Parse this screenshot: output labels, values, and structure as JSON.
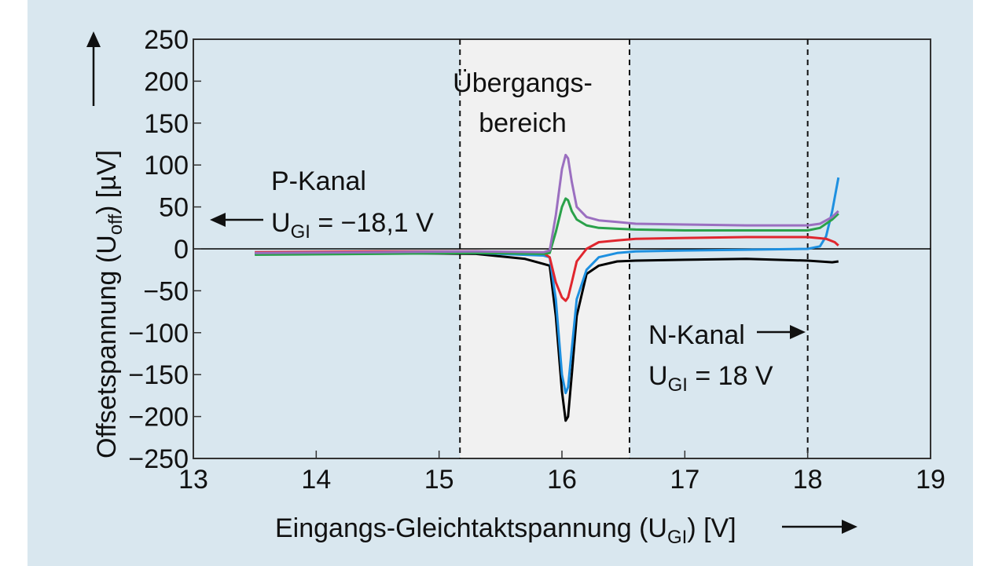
{
  "chart_data": {
    "type": "line",
    "xlabel": "Eingangs-Gleichtaktspannung (U",
    "xlabel_sub": "GI",
    "xlabel_tail": ") [V]",
    "ylabel": "Offsetspannung (U",
    "ylabel_sub": "off",
    "ylabel_tail": ") [µV]",
    "xlim": [
      13,
      19
    ],
    "ylim": [
      -250,
      250
    ],
    "xticks": [
      "13",
      "14",
      "15",
      "16",
      "17",
      "18",
      "19"
    ],
    "yticks": [
      "250",
      "200",
      "150",
      "100",
      "50",
      "0",
      "−50",
      "−100",
      "−150",
      "−200",
      "−250"
    ],
    "grid": false,
    "dashed_lines_x": [
      15.17,
      16.55,
      18.0
    ],
    "shaded_region_x": [
      15.17,
      16.55
    ],
    "annotations": {
      "region": [
        "Übergangs-",
        "bereich"
      ],
      "p_channel": "P-Kanal",
      "p_channel_eq": "U",
      "p_channel_eq_sub": "GI",
      "p_channel_eq_tail": " = −18,1 V",
      "n_channel": "N-Kanal",
      "n_channel_eq": "U",
      "n_channel_eq_sub": "GI",
      "n_channel_eq_tail": " = 18 V"
    },
    "series": [
      {
        "color": "#000000",
        "x": [
          13.5,
          14.5,
          15.3,
          15.7,
          15.85,
          15.9,
          15.95,
          16.0,
          16.03,
          16.05,
          16.08,
          16.12,
          16.2,
          16.3,
          16.45,
          16.6,
          17.0,
          17.5,
          18.0,
          18.2,
          18.25
        ],
        "y": [
          -6,
          -5,
          -6,
          -12,
          -18,
          -20,
          -80,
          -170,
          -205,
          -200,
          -150,
          -80,
          -30,
          -20,
          -15,
          -14,
          -13,
          -12,
          -14,
          -16,
          -15
        ]
      },
      {
        "color": "#1e90e0",
        "x": [
          13.5,
          14.5,
          15.3,
          15.85,
          15.9,
          15.95,
          16.0,
          16.03,
          16.05,
          16.08,
          16.12,
          16.2,
          16.3,
          16.45,
          16.6,
          17.0,
          17.5,
          18.0,
          18.1,
          18.15,
          18.2,
          18.25
        ],
        "y": [
          -5,
          -4,
          -5,
          -8,
          -10,
          -60,
          -150,
          -172,
          -165,
          -120,
          -60,
          -25,
          -10,
          -5,
          -3,
          -2,
          -1,
          0,
          3,
          15,
          45,
          85
        ]
      },
      {
        "color": "#e0262e",
        "x": [
          13.5,
          14.5,
          15.3,
          15.85,
          15.9,
          15.95,
          16.0,
          16.03,
          16.05,
          16.08,
          16.12,
          16.2,
          16.3,
          16.45,
          16.6,
          17.0,
          17.5,
          18.0,
          18.15,
          18.22,
          18.25
        ],
        "y": [
          -4,
          -3,
          -3,
          -5,
          -10,
          -40,
          -58,
          -62,
          -58,
          -40,
          -15,
          0,
          8,
          10,
          12,
          13,
          14,
          14,
          12,
          8,
          4
        ]
      },
      {
        "color": "#2aa14a",
        "x": [
          13.5,
          14.5,
          15.3,
          15.85,
          15.9,
          15.95,
          16.0,
          16.03,
          16.05,
          16.08,
          16.12,
          16.2,
          16.3,
          16.45,
          16.6,
          17.0,
          17.5,
          18.0,
          18.1,
          18.2,
          18.25
        ],
        "y": [
          -7,
          -6,
          -5,
          -6,
          -5,
          20,
          50,
          60,
          58,
          45,
          35,
          28,
          25,
          24,
          23,
          22,
          22,
          22,
          25,
          35,
          42
        ]
      },
      {
        "color": "#9b6fc0",
        "x": [
          13.5,
          14.5,
          15.3,
          15.85,
          15.9,
          15.95,
          16.0,
          16.03,
          16.05,
          16.08,
          16.12,
          16.2,
          16.3,
          16.45,
          16.6,
          17.0,
          17.5,
          18.0,
          18.1,
          18.2,
          18.25
        ],
        "y": [
          -5,
          -4,
          -3,
          -4,
          -2,
          40,
          95,
          112,
          108,
          80,
          50,
          38,
          34,
          32,
          30,
          29,
          28,
          28,
          30,
          38,
          45
        ]
      }
    ]
  }
}
